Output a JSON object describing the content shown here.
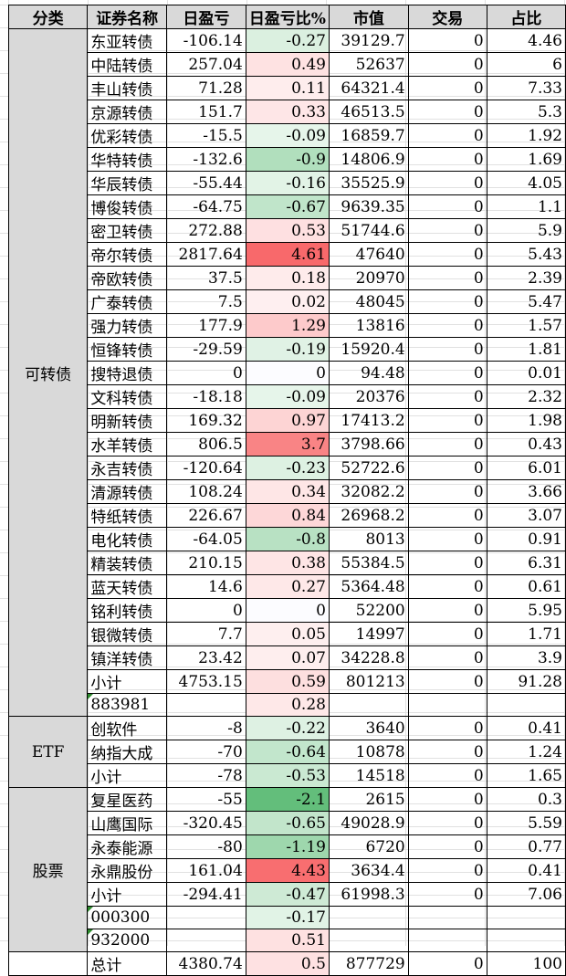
{
  "headers": [
    "分类",
    "证券名称",
    "日盈亏",
    "日盈亏比%",
    "市值",
    "交易",
    "占比"
  ],
  "groups": [
    {
      "category": "可转债",
      "rows": [
        {
          "name": "东亚转债",
          "pnl": "-106.14",
          "pct": "-0.27",
          "mv": "39129.7",
          "trade": "0",
          "share": "4.46"
        },
        {
          "name": "中陆转债",
          "pnl": "257.04",
          "pct": "0.49",
          "mv": "52637",
          "trade": "0",
          "share": "6"
        },
        {
          "name": "丰山转债",
          "pnl": "71.28",
          "pct": "0.11",
          "mv": "64321.4",
          "trade": "0",
          "share": "7.33"
        },
        {
          "name": "京源转债",
          "pnl": "151.7",
          "pct": "0.33",
          "mv": "46513.5",
          "trade": "0",
          "share": "5.3"
        },
        {
          "name": "优彩转债",
          "pnl": "-15.5",
          "pct": "-0.09",
          "mv": "16859.7",
          "trade": "0",
          "share": "1.92"
        },
        {
          "name": "华特转债",
          "pnl": "-132.6",
          "pct": "-0.9",
          "mv": "14806.9",
          "trade": "0",
          "share": "1.69"
        },
        {
          "name": "华辰转债",
          "pnl": "-55.44",
          "pct": "-0.16",
          "mv": "35525.9",
          "trade": "0",
          "share": "4.05"
        },
        {
          "name": "博俊转债",
          "pnl": "-64.75",
          "pct": "-0.67",
          "mv": "9639.35",
          "trade": "0",
          "share": "1.1"
        },
        {
          "name": "密卫转债",
          "pnl": "272.88",
          "pct": "0.53",
          "mv": "51744.6",
          "trade": "0",
          "share": "5.9"
        },
        {
          "name": "帝尔转债",
          "pnl": "2817.64",
          "pct": "4.61",
          "mv": "47640",
          "trade": "0",
          "share": "5.43"
        },
        {
          "name": "帝欧转债",
          "pnl": "37.5",
          "pct": "0.18",
          "mv": "20970",
          "trade": "0",
          "share": "2.39"
        },
        {
          "name": "广泰转债",
          "pnl": "7.5",
          "pct": "0.02",
          "mv": "48045",
          "trade": "0",
          "share": "5.47"
        },
        {
          "name": "强力转债",
          "pnl": "177.9",
          "pct": "1.29",
          "mv": "13816",
          "trade": "0",
          "share": "1.57"
        },
        {
          "name": "恒锋转债",
          "pnl": "-29.59",
          "pct": "-0.19",
          "mv": "15920.4",
          "trade": "0",
          "share": "1.81"
        },
        {
          "name": "搜特退债",
          "pnl": "0",
          "pct": "0",
          "mv": "94.48",
          "trade": "0",
          "share": "0.01"
        },
        {
          "name": "文科转债",
          "pnl": "-18.18",
          "pct": "-0.09",
          "mv": "20376",
          "trade": "0",
          "share": "2.32"
        },
        {
          "name": "明新转债",
          "pnl": "169.32",
          "pct": "0.97",
          "mv": "17413.2",
          "trade": "0",
          "share": "1.98"
        },
        {
          "name": "水羊转债",
          "pnl": "806.5",
          "pct": "3.7",
          "mv": "3798.66",
          "trade": "0",
          "share": "0.43"
        },
        {
          "name": "永吉转债",
          "pnl": "-120.64",
          "pct": "-0.23",
          "mv": "52722.6",
          "trade": "0",
          "share": "6.01"
        },
        {
          "name": "清源转债",
          "pnl": "108.24",
          "pct": "0.34",
          "mv": "32082.2",
          "trade": "0",
          "share": "3.66"
        },
        {
          "name": "特纸转债",
          "pnl": "226.67",
          "pct": "0.84",
          "mv": "26968.2",
          "trade": "0",
          "share": "3.07"
        },
        {
          "name": "电化转债",
          "pnl": "-64.05",
          "pct": "-0.8",
          "mv": "8013",
          "trade": "0",
          "share": "0.91"
        },
        {
          "name": "精装转债",
          "pnl": "210.15",
          "pct": "0.38",
          "mv": "55384.5",
          "trade": "0",
          "share": "6.31"
        },
        {
          "name": "蓝天转债",
          "pnl": "14.6",
          "pct": "0.27",
          "mv": "5364.48",
          "trade": "0",
          "share": "0.61"
        },
        {
          "name": "铭利转债",
          "pnl": "0",
          "pct": "0",
          "mv": "52200",
          "trade": "0",
          "share": "5.95"
        },
        {
          "name": "银微转债",
          "pnl": "7.7",
          "pct": "0.05",
          "mv": "14997",
          "trade": "0",
          "share": "1.71"
        },
        {
          "name": "镇洋转债",
          "pnl": "23.42",
          "pct": "0.07",
          "mv": "34228.8",
          "trade": "0",
          "share": "3.9"
        },
        {
          "name": "小计",
          "pnl": "4753.15",
          "pct": "0.59",
          "mv": "801213",
          "trade": "0",
          "share": "91.28"
        },
        {
          "name": "883981",
          "pnl": "",
          "pct": "0.28",
          "mv": "",
          "trade": "",
          "share": "",
          "flag": true
        }
      ]
    },
    {
      "category": "ETF",
      "rows": [
        {
          "name": "创软件",
          "pnl": "-8",
          "pct": "-0.22",
          "mv": "3640",
          "trade": "0",
          "share": "0.41"
        },
        {
          "name": "纳指大成",
          "pnl": "-70",
          "pct": "-0.64",
          "mv": "10878",
          "trade": "0",
          "share": "1.24"
        },
        {
          "name": "小计",
          "pnl": "-78",
          "pct": "-0.53",
          "mv": "14518",
          "trade": "0",
          "share": "1.65"
        }
      ]
    },
    {
      "category": "股票",
      "rows": [
        {
          "name": "复星医药",
          "pnl": "-55",
          "pct": "-2.1",
          "mv": "2615",
          "trade": "0",
          "share": "0.3"
        },
        {
          "name": "山鹰国际",
          "pnl": "-320.45",
          "pct": "-0.65",
          "mv": "49028.9",
          "trade": "0",
          "share": "5.59"
        },
        {
          "name": "永泰能源",
          "pnl": "-80",
          "pct": "-1.19",
          "mv": "6720",
          "trade": "0",
          "share": "0.77"
        },
        {
          "name": "永鼎股份",
          "pnl": "161.04",
          "pct": "4.43",
          "mv": "3634.4",
          "trade": "0",
          "share": "0.41"
        },
        {
          "name": "小计",
          "pnl": "-294.41",
          "pct": "-0.47",
          "mv": "61998.3",
          "trade": "0",
          "share": "7.06"
        },
        {
          "name": "000300",
          "pnl": "",
          "pct": "-0.17",
          "mv": "",
          "trade": "",
          "share": "",
          "flag": true
        },
        {
          "name": "932000",
          "pnl": "",
          "pct": "0.51",
          "mv": "",
          "trade": "",
          "share": "",
          "flag": true
        }
      ]
    },
    {
      "category": "",
      "rows": [
        {
          "name": "总计",
          "pnl": "4380.74",
          "pct": "0.5",
          "mv": "877729",
          "trade": "0",
          "share": "100"
        }
      ]
    }
  ],
  "colors": {
    "neg_max": "#63BE7B",
    "pos_max": "#F8696B",
    "header_bg": "#D9D9D9"
  }
}
